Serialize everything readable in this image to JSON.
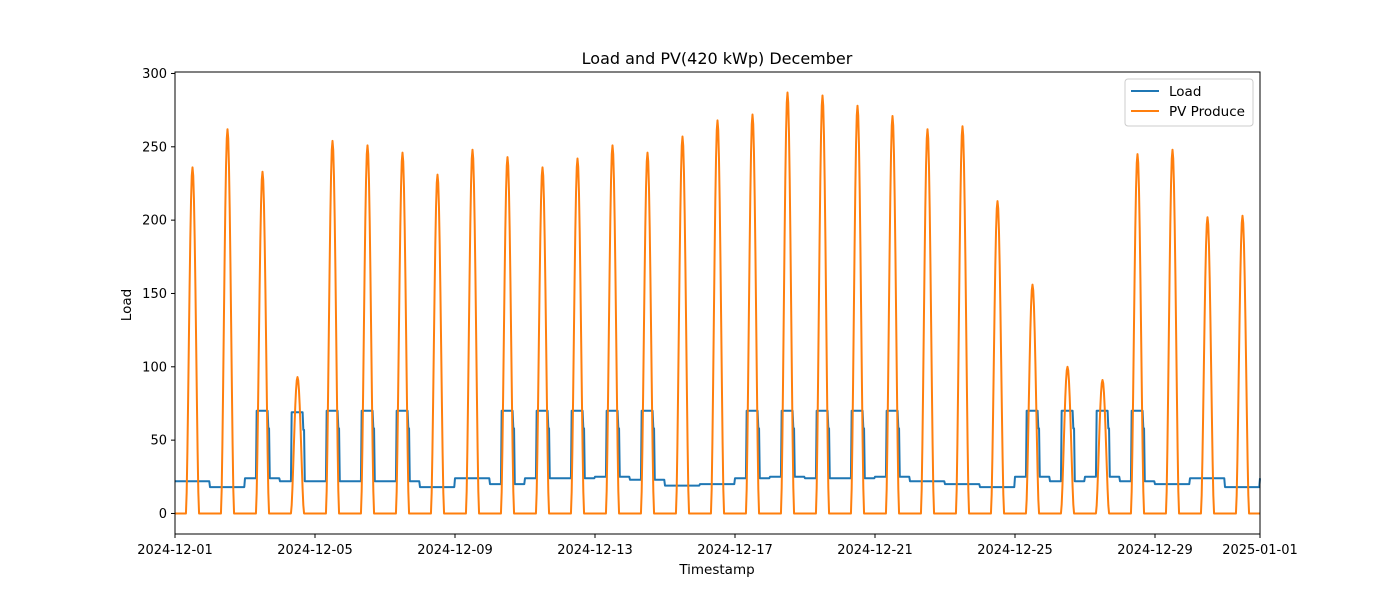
{
  "chart_data": {
    "type": "line",
    "title": "Load and PV(420 kWp) December",
    "xlabel": "Timestamp",
    "ylabel": "Load",
    "x_range": [
      "2024-12-01",
      "2025-01-01"
    ],
    "ylim": [
      -14,
      301
    ],
    "y_ticks": [
      0,
      50,
      100,
      150,
      200,
      250,
      300
    ],
    "x_ticks": [
      "2024-12-01",
      "2024-12-05",
      "2024-12-09",
      "2024-12-13",
      "2024-12-17",
      "2024-12-21",
      "2024-12-25",
      "2024-12-29",
      "2025-01-01"
    ],
    "grid": false,
    "legend_position": "upper right",
    "colors": {
      "Load": "#1f77b4",
      "PV Produce": "#ff7f0e"
    },
    "days": [
      "2024-12-01",
      "2024-12-02",
      "2024-12-03",
      "2024-12-04",
      "2024-12-05",
      "2024-12-06",
      "2024-12-07",
      "2024-12-08",
      "2024-12-09",
      "2024-12-10",
      "2024-12-11",
      "2024-12-12",
      "2024-12-13",
      "2024-12-14",
      "2024-12-15",
      "2024-12-16",
      "2024-12-17",
      "2024-12-18",
      "2024-12-19",
      "2024-12-20",
      "2024-12-21",
      "2024-12-22",
      "2024-12-23",
      "2024-12-24",
      "2024-12-25",
      "2024-12-26",
      "2024-12-27",
      "2024-12-28",
      "2024-12-29",
      "2024-12-30",
      "2024-12-31"
    ],
    "series": [
      {
        "name": "Load",
        "daily_base": [
          22,
          18,
          24,
          22,
          22,
          22,
          22,
          18,
          24,
          20,
          24,
          24,
          25,
          23,
          19,
          20,
          24,
          25,
          24,
          24,
          25,
          22,
          20,
          18,
          25,
          22,
          25,
          22,
          20,
          24,
          18
        ],
        "daily_work_level": [
          null,
          null,
          70,
          69,
          70,
          70,
          70,
          null,
          null,
          70,
          70,
          70,
          70,
          70,
          null,
          null,
          70,
          70,
          70,
          70,
          70,
          null,
          null,
          null,
          70,
          70,
          70,
          70,
          null,
          null,
          null
        ],
        "working_hours": [
          8,
          17
        ]
      },
      {
        "name": "PV Produce",
        "daily_peak": [
          236,
          262,
          233,
          93,
          254,
          251,
          246,
          231,
          248,
          243,
          236,
          242,
          251,
          246,
          257,
          268,
          272,
          287,
          285,
          278,
          271,
          262,
          264,
          213,
          156,
          100,
          91,
          245,
          248,
          202,
          203
        ],
        "daylight_hours": [
          7.5,
          16.5
        ]
      }
    ]
  }
}
